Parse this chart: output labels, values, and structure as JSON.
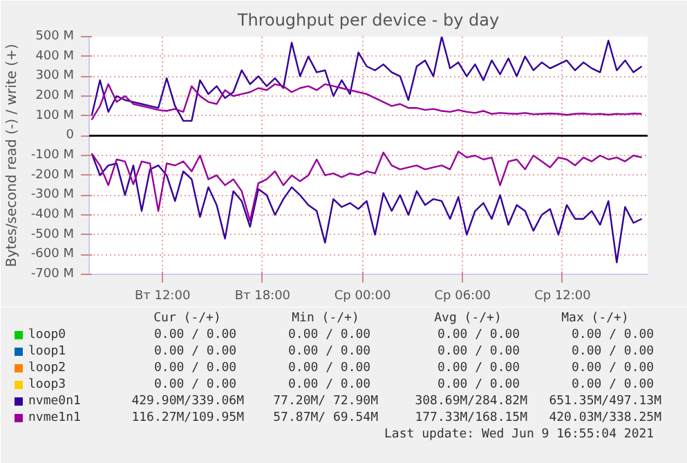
{
  "chart_data": {
    "type": "line",
    "title": "Throughput per device - by day",
    "ylabel": "Bytes/second read (-) / write (+)",
    "xlim": [
      "2021-06-08T07:36",
      "2021-06-09T17:06"
    ],
    "ylim": [
      -700,
      500
    ],
    "xticks": [
      {
        "value": "2021-06-08T12:00",
        "label": "Вт 12:00"
      },
      {
        "value": "2021-06-08T18:00",
        "label": "Вт 18:00"
      },
      {
        "value": "2021-06-09T00:00",
        "label": "Ср 00:00"
      },
      {
        "value": "2021-06-09T06:00",
        "label": "Ср 06:00"
      },
      {
        "value": "2021-06-09T12:00",
        "label": "Ср 12:00"
      }
    ],
    "x": [
      "2021-06-08T07:45",
      "2021-06-08T08:15",
      "2021-06-08T08:45",
      "2021-06-08T09:15",
      "2021-06-08T09:45",
      "2021-06-08T10:15",
      "2021-06-08T10:45",
      "2021-06-08T11:15",
      "2021-06-08T11:45",
      "2021-06-08T12:15",
      "2021-06-08T12:45",
      "2021-06-08T13:15",
      "2021-06-08T13:45",
      "2021-06-08T14:15",
      "2021-06-08T14:45",
      "2021-06-08T15:15",
      "2021-06-08T15:45",
      "2021-06-08T16:15",
      "2021-06-08T16:45",
      "2021-06-08T17:15",
      "2021-06-08T17:45",
      "2021-06-08T18:15",
      "2021-06-08T18:45",
      "2021-06-08T19:15",
      "2021-06-08T19:45",
      "2021-06-08T20:15",
      "2021-06-08T20:45",
      "2021-06-08T21:15",
      "2021-06-08T21:45",
      "2021-06-08T22:15",
      "2021-06-08T22:45",
      "2021-06-08T23:15",
      "2021-06-08T23:45",
      "2021-06-09T00:15",
      "2021-06-09T00:45",
      "2021-06-09T01:15",
      "2021-06-09T01:45",
      "2021-06-09T02:15",
      "2021-06-09T02:45",
      "2021-06-09T03:15",
      "2021-06-09T03:45",
      "2021-06-09T04:15",
      "2021-06-09T04:45",
      "2021-06-09T05:15",
      "2021-06-09T05:45",
      "2021-06-09T06:15",
      "2021-06-09T06:45",
      "2021-06-09T07:15",
      "2021-06-09T07:45",
      "2021-06-09T08:15",
      "2021-06-09T08:45",
      "2021-06-09T09:15",
      "2021-06-09T09:45",
      "2021-06-09T10:15",
      "2021-06-09T10:45",
      "2021-06-09T11:15",
      "2021-06-09T11:45",
      "2021-06-09T12:15",
      "2021-06-09T12:45",
      "2021-06-09T13:15",
      "2021-06-09T13:45",
      "2021-06-09T14:15",
      "2021-06-09T14:45",
      "2021-06-09T15:15",
      "2021-06-09T15:45",
      "2021-06-09T16:15",
      "2021-06-09T16:45"
    ],
    "yticks": [
      {
        "value": -700,
        "label": "-700 M"
      },
      {
        "value": -600,
        "label": "-600 M"
      },
      {
        "value": -500,
        "label": "-500 M"
      },
      {
        "value": -400,
        "label": "-400 M"
      },
      {
        "value": -300,
        "label": "-300 M"
      },
      {
        "value": -200,
        "label": "-200 M"
      },
      {
        "value": -100,
        "label": "-100 M"
      },
      0,
      {
        "value": 100,
        "label": "100 M"
      },
      {
        "value": 200,
        "label": "200 M"
      },
      {
        "value": 300,
        "label": "300 M"
      },
      {
        "value": 400,
        "label": "400 M"
      },
      {
        "value": 500,
        "label": "500 M"
      }
    ],
    "grid": true,
    "legend": "bottom",
    "marker": "none",
    "line_style": "solid",
    "ref_lines": [
      {
        "axis": "y",
        "value": 0,
        "color": "#000000"
      }
    ],
    "series": [
      {
        "name": "loop0",
        "color": "#00cc00",
        "values": [
          null,
          null,
          null,
          null,
          null,
          null,
          null,
          null,
          null,
          null,
          null,
          null,
          null,
          null,
          null,
          null,
          null,
          null,
          null,
          null,
          null,
          null,
          null,
          null,
          null,
          null,
          null,
          null,
          null,
          null,
          null,
          null,
          null,
          null,
          null,
          null,
          null,
          null,
          null,
          null,
          null,
          null,
          null,
          null,
          null,
          null,
          null,
          null,
          null,
          null,
          null,
          null,
          null,
          null,
          null,
          null,
          null,
          null,
          null,
          null,
          null,
          null,
          null,
          null,
          null,
          null,
          null
        ]
      },
      {
        "name": "loop1",
        "color": "#0066b3",
        "values": [
          null,
          null,
          null,
          null,
          null,
          null,
          null,
          null,
          null,
          null,
          null,
          null,
          null,
          null,
          null,
          null,
          null,
          null,
          null,
          null,
          null,
          null,
          null,
          null,
          null,
          null,
          null,
          null,
          null,
          null,
          null,
          null,
          null,
          null,
          null,
          null,
          null,
          null,
          null,
          null,
          null,
          null,
          null,
          null,
          null,
          null,
          null,
          null,
          null,
          null,
          null,
          null,
          null,
          null,
          null,
          null,
          null,
          null,
          null,
          null,
          null,
          null,
          null,
          null,
          null,
          null,
          null
        ]
      },
      {
        "name": "loop2",
        "color": "#ff8000",
        "values": [
          null,
          null,
          null,
          null,
          null,
          null,
          null,
          null,
          null,
          null,
          null,
          null,
          null,
          null,
          null,
          null,
          null,
          null,
          null,
          null,
          null,
          null,
          null,
          null,
          null,
          null,
          null,
          null,
          null,
          null,
          null,
          null,
          null,
          null,
          null,
          null,
          null,
          null,
          null,
          null,
          null,
          null,
          null,
          null,
          null,
          null,
          null,
          null,
          null,
          null,
          null,
          null,
          null,
          null,
          null,
          null,
          null,
          null,
          null,
          null,
          null,
          null,
          null,
          null,
          null,
          null,
          null
        ]
      },
      {
        "name": "loop3",
        "color": "#ffcc00",
        "values": [
          null,
          null,
          null,
          null,
          null,
          null,
          null,
          null,
          null,
          null,
          null,
          null,
          null,
          null,
          null,
          null,
          null,
          null,
          null,
          null,
          null,
          null,
          null,
          null,
          null,
          null,
          null,
          null,
          null,
          null,
          null,
          null,
          null,
          null,
          null,
          null,
          null,
          null,
          null,
          null,
          null,
          null,
          null,
          null,
          null,
          null,
          null,
          null,
          null,
          null,
          null,
          null,
          null,
          null,
          null,
          null,
          null,
          null,
          null,
          null,
          null,
          null,
          null,
          null,
          null,
          null,
          null
        ]
      },
      {
        "name": "nvme0n1",
        "color": "#330099",
        "values": [
          100,
          280,
          120,
          200,
          180,
          170,
          160,
          150,
          140,
          290,
          150,
          75,
          75,
          280,
          210,
          250,
          190,
          220,
          330,
          260,
          300,
          250,
          290,
          240,
          470,
          300,
          400,
          320,
          330,
          200,
          280,
          210,
          420,
          350,
          330,
          360,
          320,
          300,
          180,
          350,
          380,
          300,
          500,
          340,
          370,
          300,
          360,
          280,
          380,
          310,
          390,
          300,
          400,
          330,
          370,
          340,
          360,
          380,
          330,
          370,
          340,
          320,
          480,
          330,
          380,
          320,
          350
        ]
      },
      {
        "color": "#330099",
        "values": [
          -90,
          -200,
          -150,
          -140,
          -300,
          -150,
          -380,
          -170,
          -150,
          -200,
          -330,
          -180,
          -220,
          -410,
          -260,
          -350,
          -520,
          -280,
          -330,
          -460,
          -270,
          -300,
          -400,
          -320,
          -260,
          -300,
          -350,
          -380,
          -540,
          -320,
          -360,
          -340,
          -370,
          -330,
          -500,
          -290,
          -380,
          -300,
          -400,
          -280,
          -350,
          -320,
          -330,
          -420,
          -310,
          -500,
          -380,
          -340,
          -420,
          -300,
          -450,
          -350,
          -380,
          -480,
          -400,
          -370,
          -500,
          -350,
          -420,
          -420,
          -380,
          -450,
          -330,
          -640,
          -360,
          -440,
          -420
        ]
      },
      {
        "name": "nvme1n1",
        "color": "#990099",
        "values": [
          80,
          150,
          260,
          170,
          200,
          160,
          150,
          140,
          130,
          125,
          135,
          120,
          250,
          200,
          170,
          160,
          230,
          200,
          210,
          220,
          240,
          230,
          260,
          250,
          220,
          240,
          250,
          230,
          260,
          250,
          240,
          230,
          220,
          210,
          190,
          170,
          150,
          160,
          140,
          140,
          130,
          135,
          125,
          120,
          130,
          120,
          115,
          125,
          110,
          115,
          112,
          110,
          115,
          108,
          110,
          112,
          110,
          105,
          110,
          112,
          108,
          110,
          106,
          110,
          108,
          112,
          110
        ]
      },
      {
        "color": "#990099",
        "values": [
          -90,
          -150,
          -250,
          -120,
          -130,
          -245,
          -130,
          -140,
          -380,
          -140,
          -150,
          -130,
          -180,
          -100,
          -220,
          -200,
          -250,
          -220,
          -280,
          -430,
          -240,
          -220,
          -180,
          -250,
          -200,
          -230,
          -200,
          -120,
          -200,
          -190,
          -210,
          -190,
          -200,
          -180,
          -190,
          -85,
          -150,
          -170,
          -160,
          -150,
          -170,
          -160,
          -150,
          -170,
          -80,
          -110,
          -100,
          -120,
          -110,
          -250,
          -130,
          -120,
          -170,
          -100,
          -130,
          -160,
          -110,
          -120,
          -150,
          -110,
          -130,
          -100,
          -120,
          -110,
          -130,
          -100,
          -110
        ]
      }
    ],
    "annotations": [
      "Cur (-/+)",
      "Min (-/+)",
      "Avg (-/+)",
      "Max (-/+)",
      "0.00 /  0.00",
      "0.00 /  0.00",
      "0.00 /  0.00",
      "0.00 /  0.00",
      "0.00 /  0.00",
      "0.00 /  0.00",
      "0.00 /  0.00",
      "0.00 /  0.00",
      "0.00 /  0.00",
      "0.00 /  0.00",
      "0.00 /  0.00",
      "0.00 /  0.00",
      "0.00 /  0.00",
      "0.00 /  0.00",
      "0.00 /  0.00",
      "0.00 /  0.00",
      "429.90M/339.06M",
      "77.20M/ 72.90M",
      "308.69M/284.82M",
      "651.35M/497.13M",
      "116.27M/109.95M",
      "57.87M/ 69.54M",
      "177.33M/168.15M",
      "420.03M/338.25M",
      "Last update: Wed Jun  9 16:55:04 2021"
    ]
  }
}
